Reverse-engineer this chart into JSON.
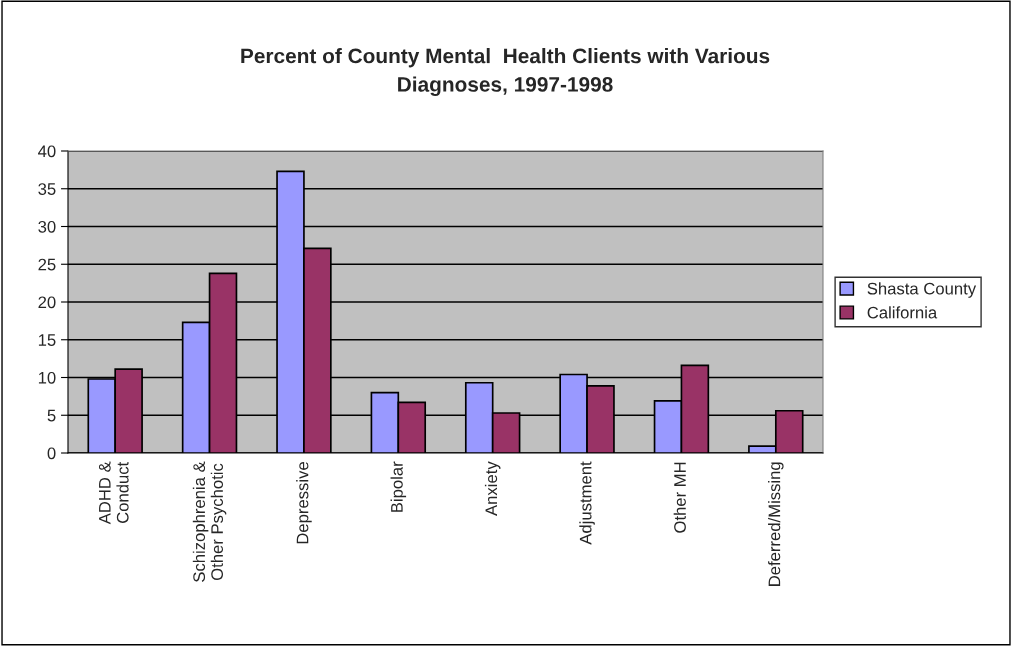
{
  "chart_data": {
    "type": "bar",
    "title": "Percent of County Mental  Health Clients with Various\nDiagnoses, 1997-1998",
    "categories": [
      "ADHD &\nConduct",
      "Schizophrenia &\nOther Psychotic",
      "Depressive",
      "Bipolar",
      "Anxiety",
      "Adjustment",
      "Other MH",
      "Deferred/Missing"
    ],
    "series": [
      {
        "name": "Shasta County",
        "color": "#9999ff",
        "values": [
          9.8,
          17.3,
          37.3,
          8.0,
          9.3,
          10.4,
          6.9,
          0.9
        ]
      },
      {
        "name": "California",
        "color": "#993366",
        "values": [
          11.1,
          23.8,
          27.1,
          6.7,
          5.3,
          8.9,
          11.6,
          5.6
        ]
      }
    ],
    "ylim": [
      0,
      40
    ],
    "yticks": [
      0,
      5,
      10,
      15,
      20,
      25,
      30,
      35,
      40
    ],
    "grid": "y",
    "legend": "right"
  }
}
